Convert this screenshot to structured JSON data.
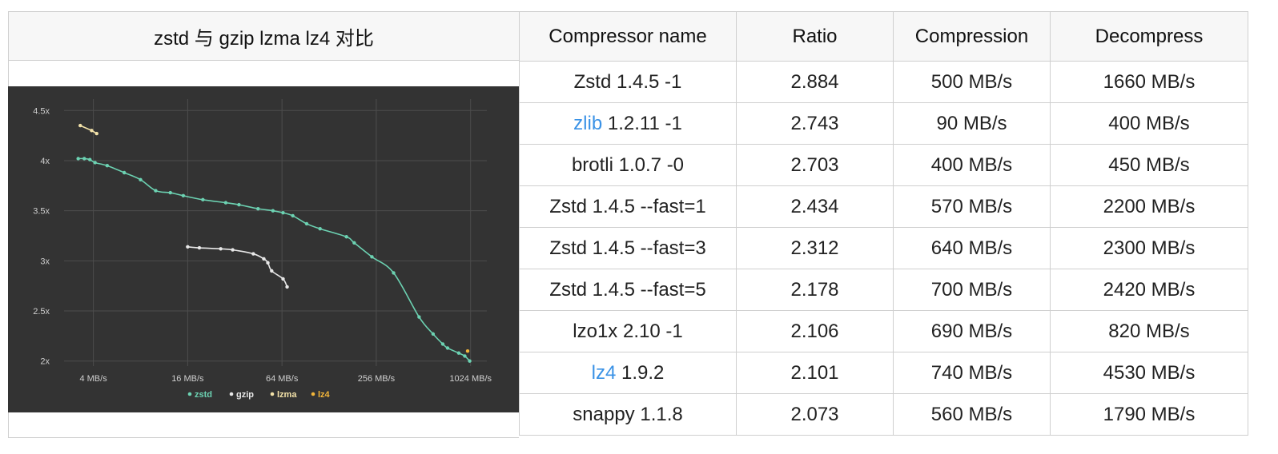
{
  "left_title": "zstd 与 gzip lzma lz4 对比",
  "table": {
    "headers": [
      "Compressor name",
      "Ratio",
      "Compression",
      "Decompress"
    ],
    "rows": [
      {
        "name_link": "",
        "name_rest": "Zstd 1.4.5 -1",
        "ratio": "2.884",
        "compression": "500 MB/s",
        "decompress": "1660 MB/s"
      },
      {
        "name_link": "zlib",
        "name_rest": " 1.2.11 -1",
        "ratio": "2.743",
        "compression": "90 MB/s",
        "decompress": "400 MB/s"
      },
      {
        "name_link": "",
        "name_rest": "brotli 1.0.7 -0",
        "ratio": "2.703",
        "compression": "400 MB/s",
        "decompress": "450 MB/s"
      },
      {
        "name_link": "",
        "name_rest": "Zstd 1.4.5 --fast=1",
        "ratio": "2.434",
        "compression": "570 MB/s",
        "decompress": "2200 MB/s"
      },
      {
        "name_link": "",
        "name_rest": "Zstd 1.4.5 --fast=3",
        "ratio": "2.312",
        "compression": "640 MB/s",
        "decompress": "2300 MB/s"
      },
      {
        "name_link": "",
        "name_rest": "Zstd 1.4.5 --fast=5",
        "ratio": "2.178",
        "compression": "700 MB/s",
        "decompress": "2420 MB/s"
      },
      {
        "name_link": "",
        "name_rest": "lzo1x 2.10 -1",
        "ratio": "2.106",
        "compression": "690 MB/s",
        "decompress": "820 MB/s"
      },
      {
        "name_link": "lz4",
        "name_rest": " 1.9.2",
        "ratio": "2.101",
        "compression": "740 MB/s",
        "decompress": "4530 MB/s"
      },
      {
        "name_link": "",
        "name_rest": "snappy 1.1.8",
        "ratio": "2.073",
        "compression": "560 MB/s",
        "decompress": "1790 MB/s"
      }
    ]
  },
  "colors": {
    "chart_bg": "#333333",
    "grid": "#4d4d4d",
    "tick_text": "#cfcfcf",
    "link": "#3a92e6"
  },
  "chart_data": {
    "type": "line",
    "x_scale": "log2",
    "x_unit": "MB/s",
    "xlim": [
      2.6,
      1300
    ],
    "ylim": [
      1.95,
      4.55
    ],
    "x_ticks": [
      4,
      16,
      64,
      256,
      1024
    ],
    "x_tick_labels": [
      "4 MB/s",
      "16 MB/s",
      "64 MB/s",
      "256 MB/s",
      "1024 MB/s"
    ],
    "y_ticks": [
      2,
      2.5,
      3,
      3.5,
      4,
      4.5
    ],
    "y_tick_labels": [
      "2x",
      "2.5x",
      "3x",
      "3.5x",
      "4x",
      "4.5x"
    ],
    "grid": true,
    "legend_position": "bottom-center",
    "series": [
      {
        "name": "zstd",
        "color": "#6cd2b2",
        "x": [
          3.2,
          3.5,
          3.8,
          4.1,
          4.9,
          6.3,
          8.0,
          10.0,
          12.4,
          15.0,
          20,
          28,
          34,
          45,
          56,
          65,
          75,
          92,
          112,
          165,
          185,
          240,
          330,
          480,
          590,
          680,
          730,
          860,
          940,
          1010
        ],
        "y": [
          4.02,
          4.02,
          4.01,
          3.98,
          3.95,
          3.88,
          3.81,
          3.7,
          3.68,
          3.65,
          3.61,
          3.58,
          3.56,
          3.52,
          3.5,
          3.48,
          3.45,
          3.37,
          3.32,
          3.24,
          3.18,
          3.04,
          2.88,
          2.44,
          2.27,
          2.17,
          2.13,
          2.08,
          2.05,
          2.0
        ]
      },
      {
        "name": "gzip",
        "color": "#e8e8e8",
        "x": [
          16,
          19,
          26,
          31,
          42,
          49,
          52,
          55,
          65,
          69
        ],
        "y": [
          3.14,
          3.13,
          3.12,
          3.11,
          3.07,
          3.02,
          2.98,
          2.9,
          2.82,
          2.74
        ]
      },
      {
        "name": "lzma",
        "color": "#f2e1a8",
        "x": [
          3.3,
          3.9,
          4.2
        ],
        "y": [
          4.35,
          4.3,
          4.27
        ]
      },
      {
        "name": "lz4",
        "color": "#f2b53a",
        "x": [
          980
        ],
        "y": [
          2.1
        ]
      }
    ]
  }
}
